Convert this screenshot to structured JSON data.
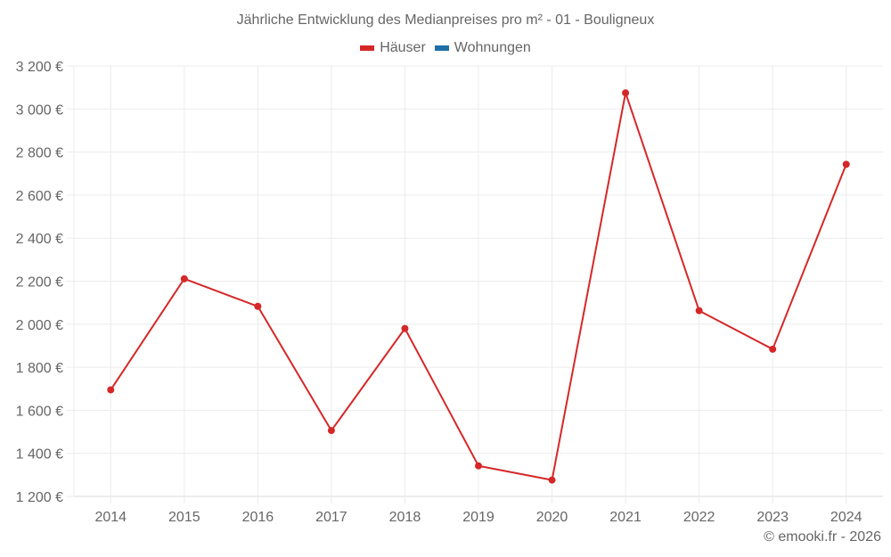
{
  "chart_data": {
    "type": "line",
    "title": "Jährliche Entwicklung des Medianpreises pro m² - 01 - Bouligneux",
    "xlabel": "",
    "ylabel": "",
    "categories": [
      "2014",
      "2015",
      "2016",
      "2017",
      "2018",
      "2019",
      "2020",
      "2021",
      "2022",
      "2023",
      "2024"
    ],
    "series": [
      {
        "name": "Häuser",
        "color": "#d62728",
        "values": [
          1695,
          2211,
          2083,
          1506,
          1980,
          1342,
          1276,
          3075,
          2063,
          1884,
          2743
        ]
      },
      {
        "name": "Wohnungen",
        "color": "#1f6fa8",
        "values": []
      }
    ],
    "ylim": [
      1200,
      3200
    ],
    "yticks": [
      1200,
      1400,
      1600,
      1800,
      2000,
      2200,
      2400,
      2600,
      2800,
      3000,
      3200
    ],
    "ytick_labels": [
      "1 200 €",
      "1 400 €",
      "1 600 €",
      "1 800 €",
      "2 000 €",
      "2 200 €",
      "2 400 €",
      "2 600 €",
      "2 800 €",
      "3 000 €",
      "3 200 €"
    ],
    "grid": true,
    "legend_position": "top"
  },
  "legend": {
    "items": [
      {
        "label": "Häuser",
        "color": "#d62728"
      },
      {
        "label": "Wohnungen",
        "color": "#1f6fa8"
      }
    ]
  },
  "credit": "© emooki.fr - 2026"
}
